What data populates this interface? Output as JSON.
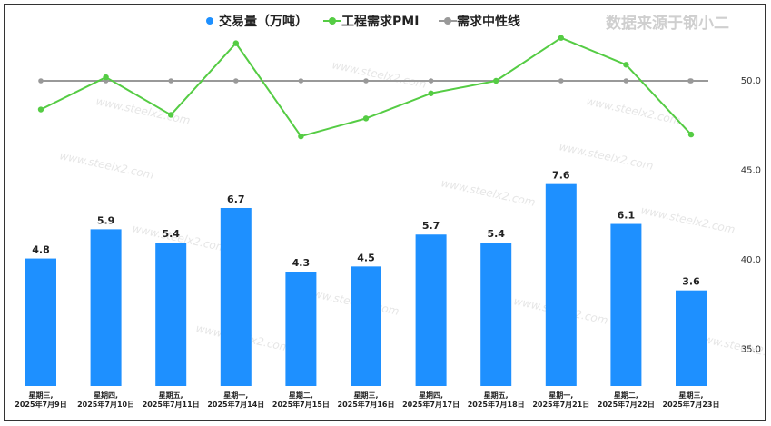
{
  "source_label": "数据来源于钢小二",
  "watermark": "www.steelx2.com",
  "legend": [
    {
      "label": "交易量（万吨）",
      "color": "#1e90ff",
      "type": "bar"
    },
    {
      "label": "工程需求PMI",
      "color": "#55cc44",
      "type": "line"
    },
    {
      "label": "需求中性线",
      "color": "#999999",
      "type": "line"
    }
  ],
  "chart_data": {
    "type": "bar+line",
    "categories": [
      [
        "星期三,",
        "2025年7月9日"
      ],
      [
        "星期四,",
        "2025年7月10日"
      ],
      [
        "星期五,",
        "2025年7月11日"
      ],
      [
        "星期一,",
        "2025年7月14日"
      ],
      [
        "星期二,",
        "2025年7月15日"
      ],
      [
        "星期三,",
        "2025年7月16日"
      ],
      [
        "星期四,",
        "2025年7月17日"
      ],
      [
        "星期五,",
        "2025年7月18日"
      ],
      [
        "星期一,",
        "2025年7月21日"
      ],
      [
        "星期二,",
        "2025年7月22日"
      ],
      [
        "星期三,",
        "2025年7月23日"
      ]
    ],
    "series": [
      {
        "name": "交易量（万吨）",
        "type": "bar",
        "color": "#1e90ff",
        "values": [
          4.8,
          5.9,
          5.4,
          6.7,
          4.3,
          4.5,
          5.7,
          5.4,
          7.6,
          6.1,
          3.6
        ]
      },
      {
        "name": "工程需求PMI",
        "type": "line",
        "color": "#55cc44",
        "axis": "right",
        "values": [
          48.4,
          50.2,
          48.1,
          52.1,
          46.9,
          47.9,
          49.3,
          50.0,
          52.4,
          50.9,
          47.0
        ]
      },
      {
        "name": "需求中性线",
        "type": "line",
        "color": "#999999",
        "axis": "right",
        "values": [
          50,
          50,
          50,
          50,
          50,
          50,
          50,
          50,
          50,
          50,
          50
        ]
      }
    ],
    "right_axis": {
      "ticks": [
        35.0,
        40.0,
        45.0,
        50.0
      ],
      "tick_labels": [
        "35.0",
        "40.0",
        "45.0",
        "50.0"
      ]
    },
    "bar_axis_max": 9.4
  }
}
